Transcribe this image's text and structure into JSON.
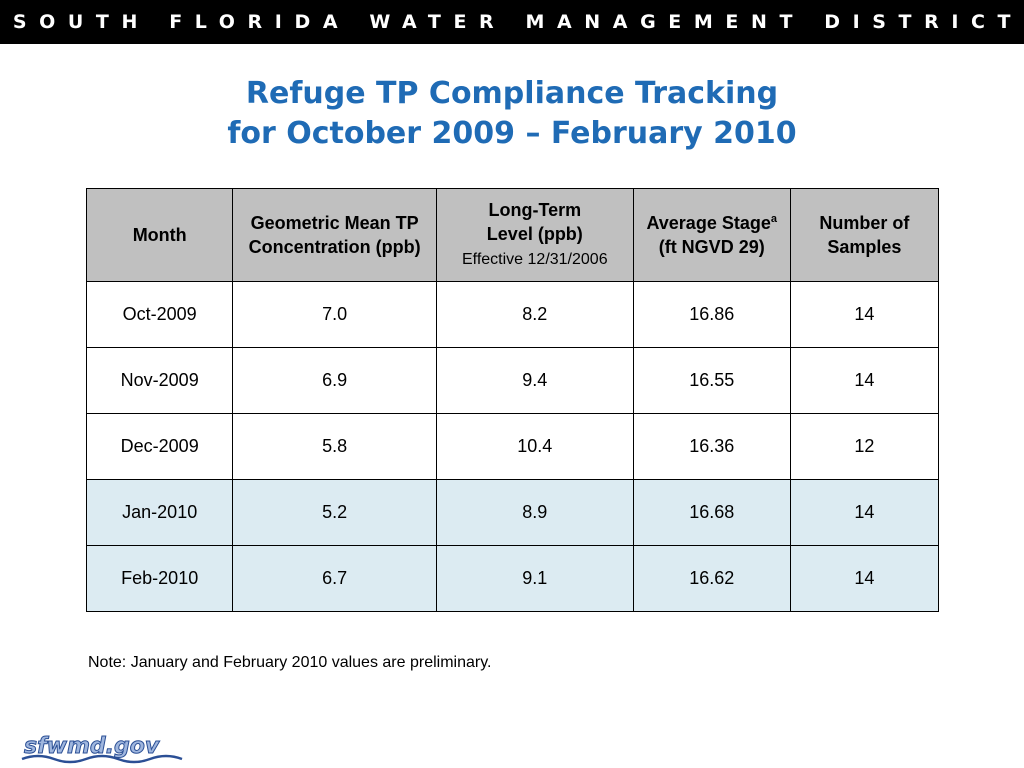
{
  "banner": {
    "text": "SOUTH FLORIDA WATER MANAGEMENT DISTRICT"
  },
  "title": {
    "line1": "Refuge TP Compliance Tracking",
    "line2": "for October 2009 – February 2010"
  },
  "table": {
    "headers": {
      "month": "Month",
      "gm_line1": "Geometric Mean TP",
      "gm_line2": "Concentration (ppb)",
      "lt_line1": "Long-Term",
      "lt_line2": "Level (ppb)",
      "lt_line3": "Effective 12/31/2006",
      "stage_line1": "Average Stage",
      "stage_sup": "a",
      "stage_line2": "(ft NGVD 29)",
      "n_line1": "Number of",
      "n_line2": "Samples"
    },
    "rows": [
      {
        "month": "Oct-2009",
        "gm": "7.0",
        "lt": "8.2",
        "stage": "16.86",
        "n": "14"
      },
      {
        "month": "Nov-2009",
        "gm": "6.9",
        "lt": "9.4",
        "stage": "16.55",
        "n": "14"
      },
      {
        "month": "Dec-2009",
        "gm": "5.8",
        "lt": "10.4",
        "stage": "16.36",
        "n": "12"
      },
      {
        "month": "Jan-2010",
        "gm": "5.2",
        "lt": "8.9",
        "stage": "16.68",
        "n": "14"
      },
      {
        "month": "Feb-2010",
        "gm": "6.7",
        "lt": "9.1",
        "stage": "16.62",
        "n": "14"
      }
    ],
    "preliminary_row_color": "#dcebf2",
    "header_color": "#c0c0c0"
  },
  "note": "Note: January and February 2010 values are preliminary.",
  "logo": {
    "text": "sfwmd.gov",
    "icon": "wave-logo-icon"
  },
  "colors": {
    "title": "#1f6bb5",
    "banner_bg": "#000000",
    "logo": "#4a72b8"
  }
}
